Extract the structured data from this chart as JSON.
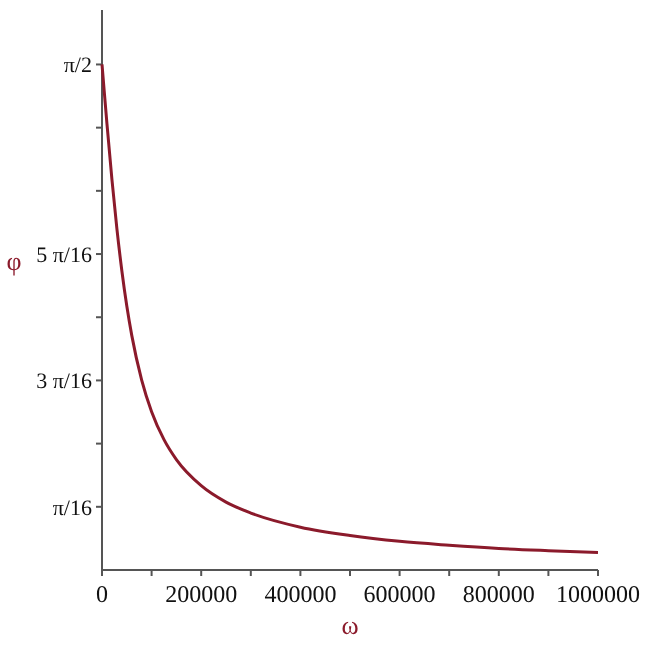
{
  "chart_data": {
    "type": "line",
    "xlabel": "ω",
    "ylabel": "φ",
    "x": [
      0,
      5000,
      10000,
      20000,
      30000,
      40000,
      50000,
      60000,
      80000,
      100000,
      125000,
      150000,
      200000,
      250000,
      300000,
      400000,
      500000,
      600000,
      700000,
      800000,
      900000,
      1000000
    ],
    "series": [
      {
        "color": "#8b1a2b",
        "values": [
          1.571,
          1.478,
          1.386,
          1.214,
          1.061,
          0.93,
          0.82,
          0.729,
          0.59,
          0.492,
          0.405,
          0.343,
          0.262,
          0.211,
          0.177,
          0.133,
          0.107,
          0.089,
          0.077,
          0.067,
          0.06,
          0.054
        ]
      }
    ],
    "xlim": [
      0,
      1000000
    ],
    "xticks": [
      0,
      {
        "value": 100000,
        "label": null
      },
      200000,
      {
        "value": 300000,
        "label": null
      },
      400000,
      {
        "value": 500000,
        "label": null
      },
      600000,
      {
        "value": 700000,
        "label": null
      },
      800000,
      {
        "value": 900000,
        "label": null
      },
      1000000
    ],
    "ylim": [
      0,
      1.74
    ],
    "yticks": [
      {
        "value": 0.19635,
        "label": "π/16"
      },
      {
        "value": 0.3927,
        "label": null
      },
      {
        "value": 0.58905,
        "label": "3 π/16"
      },
      {
        "value": 0.7854,
        "label": null
      },
      {
        "value": 0.98175,
        "label": "5 π/16"
      },
      {
        "value": 1.1781,
        "label": null
      },
      {
        "value": 1.37445,
        "label": null
      },
      {
        "value": 1.5708,
        "label": "π/2"
      }
    ],
    "grid": false
  }
}
